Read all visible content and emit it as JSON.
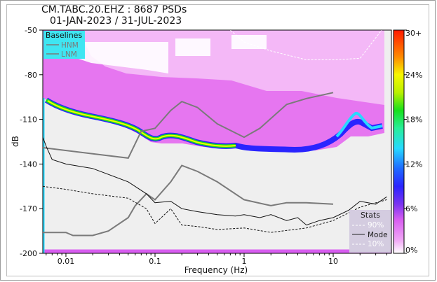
{
  "title": "CM.TABC.20.EHZ : 8687 PSDs",
  "subtitle": "01-JAN-2023 / 31-JUL-2023",
  "chart_data": {
    "type": "heatmap",
    "title": "CM.TABC.20.EHZ : 8687 PSDs",
    "subtitle": "01-JAN-2023 / 31-JUL-2023",
    "xlabel": "Frequency (Hz)",
    "ylabel": "dB",
    "x_scale": "log",
    "xlim": [
      0.0055,
      45
    ],
    "ylim": [
      -200,
      -50
    ],
    "x_ticks": [
      0.01,
      0.1,
      1,
      10
    ],
    "x_tick_labels": [
      "0.01",
      "0.1",
      "1",
      "10"
    ],
    "y_ticks": [
      -50,
      -80,
      -110,
      -140,
      -170,
      -200
    ],
    "y_tick_labels": [
      "-50",
      "-80",
      "-110",
      "-140",
      "-170",
      "-200"
    ],
    "colorbar": {
      "ticks": [
        0,
        6,
        12,
        18,
        24,
        30
      ],
      "tick_labels": [
        "0%",
        "6%",
        "12%",
        "18%",
        "24%",
        "30+"
      ],
      "colors": [
        "#ffffff",
        "#e66ef0",
        "#2a24ff",
        "#27d9ff",
        "#17e01c",
        "#f7f700",
        "#ff8a00",
        "#ff1a00"
      ]
    },
    "baselines": {
      "title": "Baselines",
      "items": [
        "HNM",
        "LNM"
      ],
      "hnm": {
        "x": [
          0.0055,
          0.05,
          0.07,
          0.1,
          0.15,
          0.2,
          0.3,
          0.5,
          1,
          1.5,
          3,
          5,
          10
        ],
        "y": [
          -129,
          -136,
          -118,
          -116,
          -104,
          -98,
          -102,
          -113,
          -122,
          -116,
          -100,
          -96,
          -92
        ]
      },
      "lnm": {
        "x": [
          0.0055,
          0.01,
          0.012,
          0.02,
          0.03,
          0.05,
          0.06,
          0.08,
          0.1,
          0.15,
          0.2,
          0.3,
          0.5,
          1,
          2,
          3,
          5,
          10
        ],
        "y": [
          -186,
          -186,
          -188,
          -188,
          -185,
          -176,
          -168,
          -160,
          -164,
          -152,
          -141,
          -145,
          -152,
          -164,
          -168,
          -166,
          -166,
          -167
        ]
      }
    },
    "stats": {
      "title": "Stats",
      "items": [
        "90%",
        "Mode",
        "10%"
      ],
      "mode": {
        "x": [
          0.0055,
          0.006,
          0.007,
          0.01,
          0.02,
          0.05,
          0.08,
          0.1,
          0.15,
          0.2,
          0.3,
          0.5,
          0.8,
          1,
          1.5,
          2,
          3,
          4,
          5,
          7,
          10,
          15,
          20,
          30,
          40
        ],
        "y": [
          -122,
          -128,
          -137,
          -140,
          -143,
          -152,
          -160,
          -166,
          -165,
          -170,
          -172,
          -174,
          -175,
          -174,
          -176,
          -174,
          -178,
          -176,
          -181,
          -178,
          -176,
          -171,
          -165,
          -167,
          -162
        ]
      },
      "p90": {
        "x": [
          0.25,
          0.4,
          0.7,
          1,
          2,
          5,
          10,
          20,
          35
        ],
        "y": [
          -46,
          -44,
          -50,
          -58,
          -64,
          -70,
          -70,
          -69,
          -50
        ]
      },
      "p10": {
        "x": [
          0.0055,
          0.01,
          0.02,
          0.05,
          0.08,
          0.1,
          0.15,
          0.2,
          0.3,
          0.5,
          1,
          2,
          5,
          10,
          20,
          40
        ],
        "y": [
          -155,
          -157,
          -160,
          -163,
          -170,
          -180,
          -170,
          -181,
          -182,
          -184,
          -183,
          -186,
          -183,
          -178,
          -169,
          -164
        ]
      }
    }
  }
}
